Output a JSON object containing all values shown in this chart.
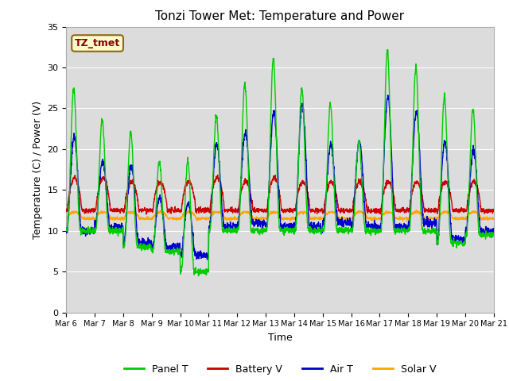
{
  "title": "Tonzi Tower Met: Temperature and Power",
  "xlabel": "Time",
  "ylabel": "Temperature (C) / Power (V)",
  "ylim": [
    0,
    35
  ],
  "yticks": [
    0,
    5,
    10,
    15,
    20,
    25,
    30,
    35
  ],
  "x_labels": [
    "Mar 6",
    "Mar 7",
    "Mar 8",
    "Mar 9",
    "Mar 10",
    "Mar 11",
    "Mar 12",
    "Mar 13",
    "Mar 14",
    "Mar 15",
    "Mar 16",
    "Mar 17",
    "Mar 18",
    "Mar 19",
    "Mar 20",
    "Mar 21"
  ],
  "annotation_text": "TZ_tmet",
  "annotation_color": "#8B0000",
  "annotation_bg": "#FFFACD",
  "annotation_border": "#8B6914",
  "colors": {
    "panel_t": "#00CC00",
    "battery_v": "#CC0000",
    "air_t": "#0000CC",
    "solar_v": "#FFA500"
  },
  "legend_labels": [
    "Panel T",
    "Battery V",
    "Air T",
    "Solar V"
  ],
  "bg_color": "#DCDCDC",
  "fig_bg": "#FFFFFF",
  "grid_color": "#FFFFFF",
  "title_fontsize": 11,
  "axis_fontsize": 9,
  "tick_fontsize": 8
}
